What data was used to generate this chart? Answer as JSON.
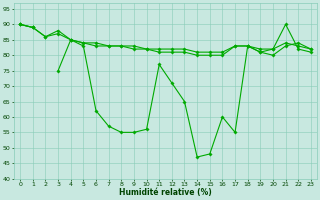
{
  "xlabel": "Humidité relative (%)",
  "background_color": "#c8e8e0",
  "grid_color": "#88ccb8",
  "line_color": "#00aa00",
  "xlim": [
    -0.5,
    23.5
  ],
  "ylim": [
    40,
    97
  ],
  "yticks": [
    40,
    45,
    50,
    55,
    60,
    65,
    70,
    75,
    80,
    85,
    90,
    95
  ],
  "xticks": [
    0,
    1,
    2,
    3,
    4,
    5,
    6,
    7,
    8,
    9,
    10,
    11,
    12,
    13,
    14,
    15,
    16,
    17,
    18,
    19,
    20,
    21,
    22,
    23
  ],
  "series_flat1": [
    90,
    89,
    86,
    88,
    85,
    84,
    84,
    83,
    83,
    83,
    82,
    82,
    82,
    82,
    81,
    81,
    81,
    83,
    83,
    82,
    82,
    84,
    83,
    82
  ],
  "series_flat2": [
    90,
    89,
    86,
    87,
    85,
    84,
    83,
    83,
    83,
    82,
    82,
    81,
    81,
    81,
    80,
    80,
    80,
    83,
    83,
    81,
    82,
    90,
    82,
    81
  ],
  "series_main": [
    90,
    89,
    null,
    75,
    85,
    83,
    62,
    57,
    55,
    55,
    56,
    77,
    71,
    65,
    47,
    48,
    60,
    55,
    83,
    81,
    80,
    83,
    84,
    82
  ]
}
